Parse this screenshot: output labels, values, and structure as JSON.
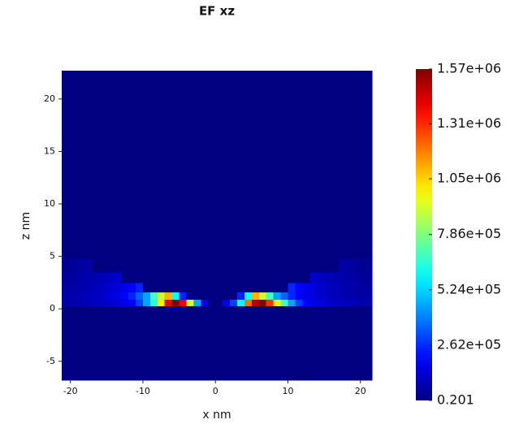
{
  "chart_data": {
    "type": "heatmap",
    "title": "EF xz",
    "x_label": "x nm",
    "y_label": "z nm",
    "xlim": [
      -21.2,
      21.6
    ],
    "ylim": [
      -6.8,
      22.7
    ],
    "xticks": [
      -20,
      -10,
      0,
      10,
      20
    ],
    "yticks": [
      -5,
      0,
      5,
      10,
      15,
      20
    ],
    "x_edges": [
      -21.2,
      -20,
      -19,
      -18,
      -17,
      -16,
      -15,
      -14,
      -13,
      -12,
      -11,
      -10,
      -9,
      -8,
      -7,
      -6,
      -5,
      -4,
      -3,
      -2,
      -1,
      0,
      1,
      2,
      3,
      4,
      5,
      6,
      7,
      8,
      9,
      10,
      11,
      12,
      13,
      14,
      15,
      16,
      17,
      18,
      19,
      20,
      21.6
    ],
    "y_edges": [
      -6.8,
      0.3,
      0.9,
      1.6,
      2.5,
      3.5,
      4.8,
      22.7
    ],
    "values": [
      [
        0.201,
        0.201,
        0.201,
        0.201,
        0.201,
        0.201,
        0.201,
        0.201,
        0.201,
        0.201,
        0.201,
        0.201,
        0.201,
        0.201,
        0.201,
        0.201,
        0.201,
        0.201,
        0.201,
        0.201,
        0.201,
        0.201,
        0.201,
        0.201,
        0.201,
        0.201,
        0.201,
        0.201,
        0.201,
        0.201,
        0.201,
        0.201,
        0.201,
        0.201,
        0.201,
        0.201,
        0.201,
        0.201,
        0.201,
        0.201,
        0.201,
        0.201
      ],
      [
        60000,
        70000,
        80000,
        90000,
        100000,
        110000,
        120000,
        140000,
        160000,
        200000,
        300000,
        450000,
        650000,
        1000000,
        1400000,
        1570000,
        1400000,
        900000,
        450000,
        150000,
        0.201,
        0.201,
        150000,
        300000,
        600000,
        1200000,
        1500000,
        1570000,
        1300000,
        1000000,
        700000,
        450000,
        300000,
        200000,
        160000,
        140000,
        120000,
        110000,
        100000,
        90000,
        80000,
        70000
      ],
      [
        60000,
        70000,
        80000,
        90000,
        100000,
        120000,
        140000,
        160000,
        200000,
        250000,
        350000,
        450000,
        700000,
        900000,
        1100000,
        600000,
        250000,
        0.201,
        0.201,
        0.201,
        0.201,
        0.201,
        0.201,
        0.201,
        250000,
        600000,
        1100000,
        900000,
        700000,
        450000,
        350000,
        250000,
        200000,
        160000,
        140000,
        120000,
        100000,
        90000,
        80000,
        70000,
        60000,
        60000
      ],
      [
        50000,
        60000,
        70000,
        80000,
        90000,
        100000,
        120000,
        140000,
        170000,
        200000,
        250000,
        0.201,
        0.201,
        0.201,
        0.201,
        0.201,
        0.201,
        0.201,
        0.201,
        0.201,
        0.201,
        0.201,
        0.201,
        0.201,
        0.201,
        0.201,
        0.201,
        0.201,
        0.201,
        0.201,
        0.201,
        250000,
        200000,
        170000,
        140000,
        120000,
        100000,
        90000,
        80000,
        70000,
        60000,
        50000
      ],
      [
        40000,
        50000,
        60000,
        70000,
        80000,
        90000,
        100000,
        120000,
        0.201,
        0.201,
        0.201,
        0.201,
        0.201,
        0.201,
        0.201,
        0.201,
        0.201,
        0.201,
        0.201,
        0.201,
        0.201,
        0.201,
        0.201,
        0.201,
        0.201,
        0.201,
        0.201,
        0.201,
        0.201,
        0.201,
        0.201,
        0.201,
        0.201,
        0.201,
        120000,
        100000,
        90000,
        80000,
        70000,
        60000,
        50000,
        40000
      ],
      [
        30000,
        40000,
        50000,
        60000,
        0.201,
        0.201,
        0.201,
        0.201,
        0.201,
        0.201,
        0.201,
        0.201,
        0.201,
        0.201,
        0.201,
        0.201,
        0.201,
        0.201,
        0.201,
        0.201,
        0.201,
        0.201,
        0.201,
        0.201,
        0.201,
        0.201,
        0.201,
        0.201,
        0.201,
        0.201,
        0.201,
        0.201,
        0.201,
        0.201,
        0.201,
        0.201,
        0.201,
        0.201,
        60000,
        50000,
        40000,
        30000
      ],
      [
        0.201,
        0.201,
        0.201,
        0.201,
        0.201,
        0.201,
        0.201,
        0.201,
        0.201,
        0.201,
        0.201,
        0.201,
        0.201,
        0.201,
        0.201,
        0.201,
        0.201,
        0.201,
        0.201,
        0.201,
        0.201,
        0.201,
        0.201,
        0.201,
        0.201,
        0.201,
        0.201,
        0.201,
        0.201,
        0.201,
        0.201,
        0.201,
        0.201,
        0.201,
        0.201,
        0.201,
        0.201,
        0.201,
        0.201,
        0.201,
        0.201,
        0.201
      ]
    ],
    "colormap": "jet",
    "clim": [
      0.201,
      1570000
    ],
    "cticks": [
      0.201,
      {
        "value": 262000,
        "label": "2.62e+05"
      },
      {
        "value": 524000,
        "label": "5.24e+05"
      },
      {
        "value": 786000,
        "label": "7.86e+05"
      },
      {
        "value": 1050000,
        "label": "1.05e+06"
      },
      {
        "value": 1310000,
        "label": "1.31e+06"
      },
      {
        "value": 1570000,
        "label": "1.57e+06"
      }
    ]
  }
}
